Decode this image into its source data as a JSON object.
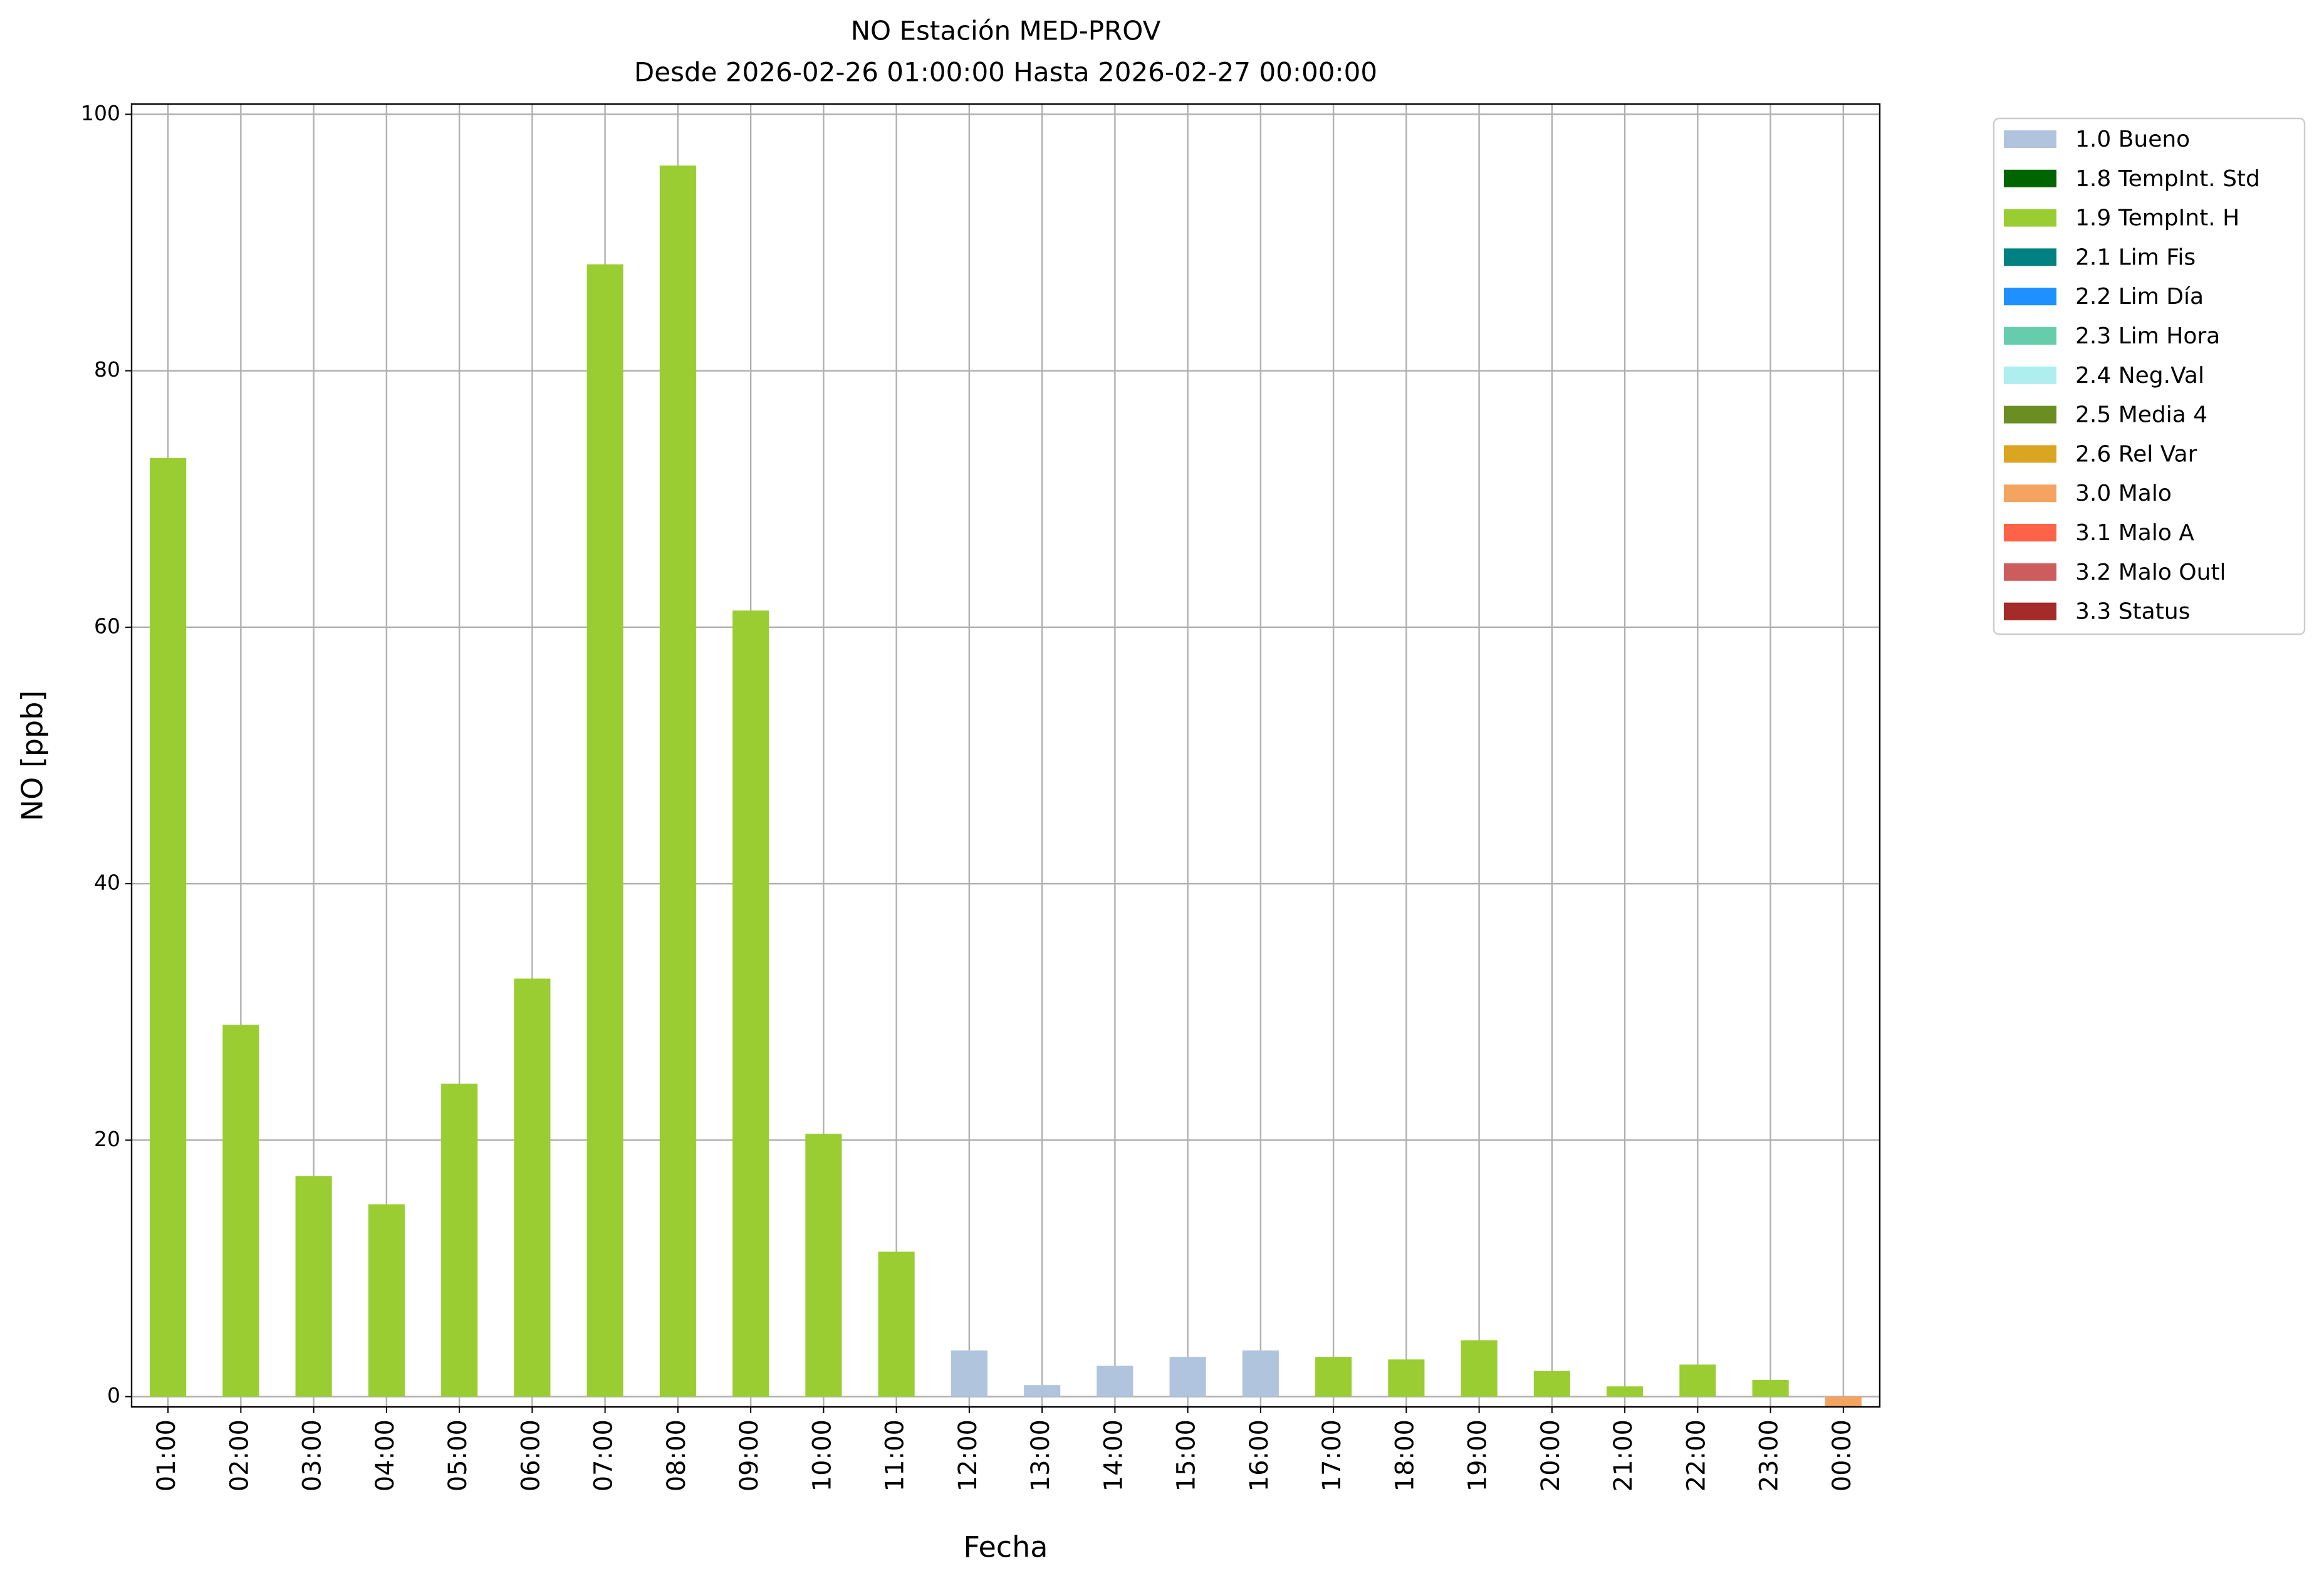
{
  "chart_data": {
    "type": "bar",
    "title": "NO Estación MED-PROV",
    "subtitle": "Desde 2026-02-26 01:00:00 Hasta 2026-02-27 00:00:00",
    "x_label": "Fecha",
    "y_label": "NO [ppb]",
    "categories": [
      "01:00",
      "02:00",
      "03:00",
      "04:00",
      "05:00",
      "06:00",
      "07:00",
      "08:00",
      "09:00",
      "10:00",
      "11:00",
      "12:00",
      "13:00",
      "14:00",
      "15:00",
      "16:00",
      "17:00",
      "18:00",
      "19:00",
      "20:00",
      "21:00",
      "22:00",
      "23:00",
      "00:00"
    ],
    "series": [
      {
        "name": "1.0 Bueno",
        "color": "#b0c4de",
        "values": [
          null,
          null,
          null,
          null,
          null,
          null,
          null,
          null,
          null,
          null,
          null,
          3.6,
          0.9,
          2.4,
          3.1,
          3.6,
          null,
          null,
          null,
          null,
          null,
          null,
          null,
          null
        ]
      },
      {
        "name": "1.8 TempInt. Std",
        "color": "#006400",
        "values": [
          null,
          null,
          null,
          null,
          null,
          null,
          null,
          null,
          null,
          null,
          null,
          null,
          null,
          null,
          null,
          null,
          null,
          null,
          null,
          null,
          null,
          null,
          null,
          null
        ]
      },
      {
        "name": "1.9 TempInt. H",
        "color": "#9acd32",
        "values": [
          73.2,
          29.0,
          17.2,
          15.0,
          24.4,
          32.6,
          88.3,
          96.0,
          61.3,
          20.5,
          11.3,
          null,
          null,
          null,
          null,
          null,
          3.1,
          2.9,
          4.4,
          2.0,
          0.8,
          2.5,
          1.3,
          null
        ]
      },
      {
        "name": "2.1 Lim Fis",
        "color": "#008080",
        "values": [
          null,
          null,
          null,
          null,
          null,
          null,
          null,
          null,
          null,
          null,
          null,
          null,
          null,
          null,
          null,
          null,
          null,
          null,
          null,
          null,
          null,
          null,
          null,
          null
        ]
      },
      {
        "name": "2.2 Lim Día",
        "color": "#1e90ff",
        "values": [
          null,
          null,
          null,
          null,
          null,
          null,
          null,
          null,
          null,
          null,
          null,
          null,
          null,
          null,
          null,
          null,
          null,
          null,
          null,
          null,
          null,
          null,
          null,
          null
        ]
      },
      {
        "name": "2.3 Lim Hora",
        "color": "#66cdaa",
        "values": [
          null,
          null,
          null,
          null,
          null,
          null,
          null,
          null,
          null,
          null,
          null,
          null,
          null,
          null,
          null,
          null,
          null,
          null,
          null,
          null,
          null,
          null,
          null,
          null
        ]
      },
      {
        "name": "2.4 Neg.Val",
        "color": "#afeeee",
        "values": [
          null,
          null,
          null,
          null,
          null,
          null,
          null,
          null,
          null,
          null,
          null,
          null,
          null,
          null,
          null,
          null,
          null,
          null,
          null,
          null,
          null,
          null,
          null,
          null
        ]
      },
      {
        "name": "2.5 Media 4",
        "color": "#6b8e23",
        "values": [
          null,
          null,
          null,
          null,
          null,
          null,
          null,
          null,
          null,
          null,
          null,
          null,
          null,
          null,
          null,
          null,
          null,
          null,
          null,
          null,
          null,
          null,
          null,
          null
        ]
      },
      {
        "name": "2.6 Rel Var",
        "color": "#daa520",
        "values": [
          null,
          null,
          null,
          null,
          null,
          null,
          null,
          null,
          null,
          null,
          null,
          null,
          null,
          null,
          null,
          null,
          null,
          null,
          null,
          null,
          null,
          null,
          null,
          null
        ]
      },
      {
        "name": "3.0 Malo",
        "color": "#f4a460",
        "values": [
          null,
          null,
          null,
          null,
          null,
          null,
          null,
          null,
          null,
          null,
          null,
          null,
          null,
          null,
          null,
          null,
          null,
          null,
          null,
          null,
          null,
          null,
          null,
          -0.8
        ]
      },
      {
        "name": "3.1 Malo A",
        "color": "#ff6347",
        "values": [
          null,
          null,
          null,
          null,
          null,
          null,
          null,
          null,
          null,
          null,
          null,
          null,
          null,
          null,
          null,
          null,
          null,
          null,
          null,
          null,
          null,
          null,
          null,
          null
        ]
      },
      {
        "name": "3.2 Malo Outl",
        "color": "#cd5c5c",
        "values": [
          null,
          null,
          null,
          null,
          null,
          null,
          null,
          null,
          null,
          null,
          null,
          null,
          null,
          null,
          null,
          null,
          null,
          null,
          null,
          null,
          null,
          null,
          null,
          null
        ]
      },
      {
        "name": "3.3 Status",
        "color": "#a52a2a",
        "values": [
          null,
          null,
          null,
          null,
          null,
          null,
          null,
          null,
          null,
          null,
          null,
          null,
          null,
          null,
          null,
          null,
          null,
          null,
          null,
          null,
          null,
          null,
          null,
          null
        ]
      }
    ],
    "ylim": [
      -0.8,
      100.8
    ],
    "yticks": [
      0,
      20,
      40,
      60,
      80,
      100
    ],
    "grid": true,
    "legend": "outside-right"
  }
}
